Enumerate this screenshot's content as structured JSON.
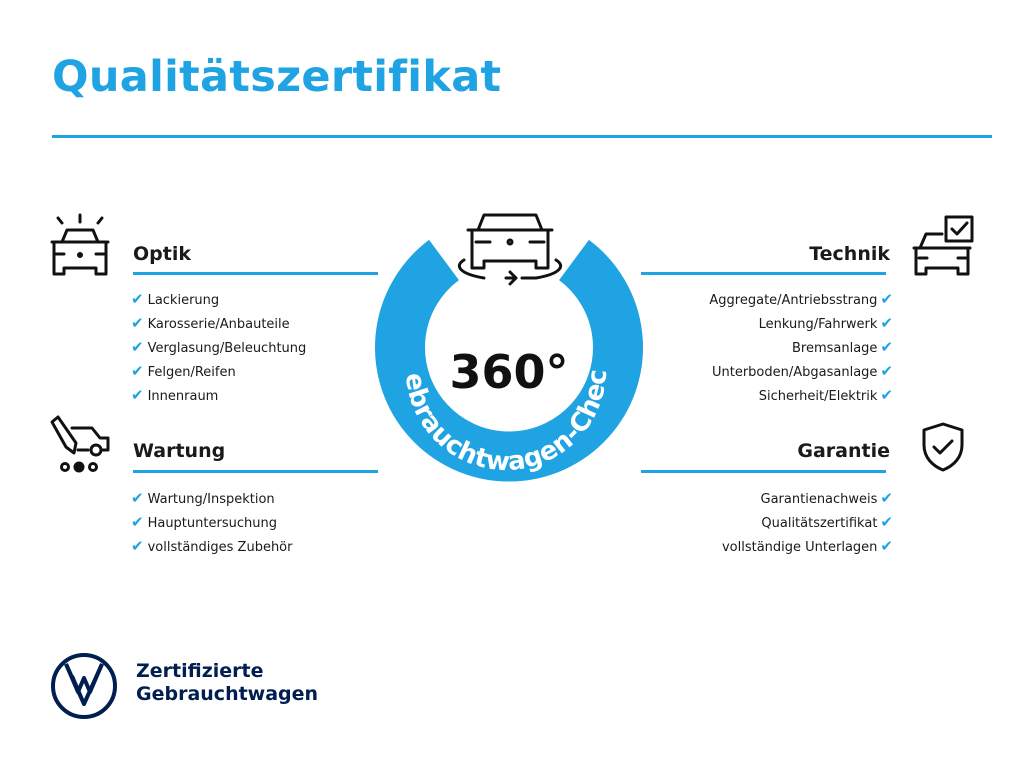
{
  "title": "Qualitätszertifikat",
  "center": {
    "number": "360°",
    "ring_text": "Gebrauchtwagen-Check"
  },
  "sections": {
    "optik": {
      "title": "Optik",
      "items": [
        "Lackierung",
        "Karosserie/Anbauteile",
        "Verglasung/Beleuchtung",
        "Felgen/Reifen",
        "Innenraum"
      ]
    },
    "wartung": {
      "title": "Wartung",
      "items": [
        "Wartung/Inspektion",
        "Hauptuntersuchung",
        "vollständiges Zubehör"
      ]
    },
    "technik": {
      "title": "Technik",
      "items": [
        "Aggregate/Antriebsstrang",
        "Lenkung/Fahrwerk",
        "Bremsanlage",
        "Unterboden/Abgasanlage",
        "Sicherheit/Elektrik"
      ]
    },
    "garantie": {
      "title": "Garantie",
      "items": [
        "Garantienachweis",
        "Qualitätszertifikat",
        "vollständige Unterlagen"
      ]
    }
  },
  "check_mark": "✔",
  "footer": {
    "line1": "Zertifizierte",
    "line2": "Gebrauchtwagen"
  },
  "colors": {
    "accent": "#1fa3e2",
    "brand": "#001e50",
    "text": "#1a1a1a"
  }
}
